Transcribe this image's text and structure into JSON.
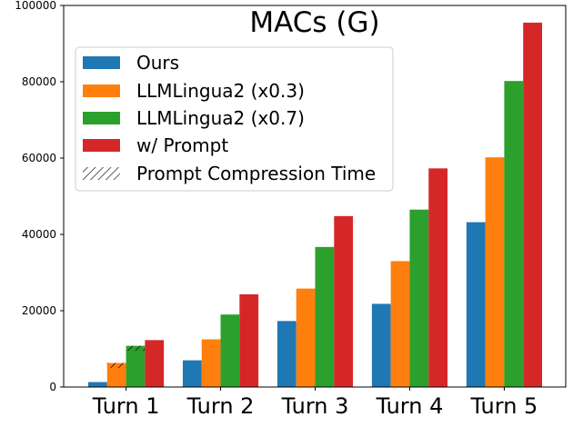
{
  "chart_data": {
    "type": "bar",
    "title": "MACs (G)",
    "xlabel": "",
    "ylabel": "",
    "ylim": [
      0,
      100000
    ],
    "yticks": [
      0,
      20000,
      40000,
      60000,
      80000,
      100000
    ],
    "ytick_labels": [
      "0",
      "20000",
      "40000",
      "60000",
      "80000",
      "100000"
    ],
    "categories": [
      "Turn 1",
      "Turn 2",
      "Turn 3",
      "Turn 4",
      "Turn 5"
    ],
    "series": [
      {
        "name": "Ours",
        "color": "#1f77b4",
        "values": [
          1300,
          7000,
          17300,
          21800,
          43200
        ]
      },
      {
        "name": "LLMLingua2 (x0.3)",
        "color": "#ff7f0e",
        "values": [
          6300,
          12500,
          25800,
          33000,
          60200
        ]
      },
      {
        "name": "LLMLingua2 (x0.7)",
        "color": "#2ca02c",
        "values": [
          10800,
          19000,
          36700,
          46500,
          80200
        ]
      },
      {
        "name": "w/ Prompt",
        "color": "#d62728",
        "values": [
          12300,
          24300,
          44800,
          57300,
          95500
        ]
      }
    ],
    "compression_time": {
      "name": "Prompt Compression Time",
      "pattern": "hatch",
      "segments": [
        {
          "series": "LLMLingua2 (x0.3)",
          "category": "Turn 1",
          "from": 5000,
          "to": 6300
        },
        {
          "series": "LLMLingua2 (x0.7)",
          "category": "Turn 1",
          "from": 9500,
          "to": 10800
        }
      ]
    },
    "legend": {
      "position": "top-left",
      "entries": [
        "Ours",
        "LLMLingua2 (x0.3)",
        "LLMLingua2 (x0.7)",
        "w/ Prompt",
        "Prompt Compression Time"
      ]
    },
    "grid": false
  }
}
